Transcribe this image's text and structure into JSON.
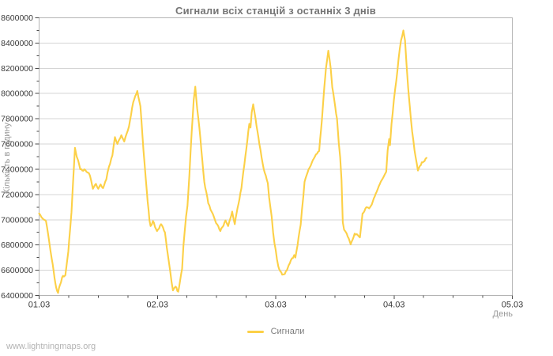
{
  "watermark": "www.lightningmaps.org",
  "colors": {
    "series": "#fcd047",
    "title_text": "#757575",
    "axis_tick_text": "#3a3a3a",
    "muted_text": "#9a9a9a",
    "grid": "#d4d4d4",
    "frame": "#b4b4b4",
    "tick": "#4a4a4a",
    "background": "#ffffff"
  },
  "chart_data": {
    "type": "line",
    "title": "Сигнали всіх станцій з останніх 3 днів",
    "xlabel": "День",
    "ylabel": "Кількість в годину",
    "legend_position": "bottom",
    "grid": "horizontal-major-only",
    "ylim": [
      6400000,
      8600000
    ],
    "y_tick_step": 200000,
    "y_minor_step": 100000,
    "x_range_days": [
      0,
      4
    ],
    "x_minor_step_days": 0.25,
    "x_tick_labels": [
      "01.03",
      "02.03",
      "03.03",
      "04.03",
      "05.03"
    ],
    "series": [
      {
        "name": "Сигнали",
        "color": "#fcd047",
        "points_format": "[days_since_01.03, signals_per_hour]",
        "points": [
          [
            0.0,
            7050000
          ],
          [
            0.02,
            7020000
          ],
          [
            0.058,
            6990000
          ],
          [
            0.085,
            6830000
          ],
          [
            0.107,
            6690000
          ],
          [
            0.13,
            6540000
          ],
          [
            0.145,
            6460000
          ],
          [
            0.16,
            6420000
          ],
          [
            0.175,
            6480000
          ],
          [
            0.195,
            6545000
          ],
          [
            0.21,
            6550000
          ],
          [
            0.222,
            6560000
          ],
          [
            0.235,
            6660000
          ],
          [
            0.247,
            6750000
          ],
          [
            0.262,
            6920000
          ],
          [
            0.274,
            7060000
          ],
          [
            0.287,
            7300000
          ],
          [
            0.303,
            7570000
          ],
          [
            0.318,
            7500000
          ],
          [
            0.33,
            7470000
          ],
          [
            0.348,
            7400000
          ],
          [
            0.365,
            7390000
          ],
          [
            0.382,
            7400000
          ],
          [
            0.4,
            7380000
          ],
          [
            0.42,
            7370000
          ],
          [
            0.44,
            7310000
          ],
          [
            0.455,
            7245000
          ],
          [
            0.48,
            7285000
          ],
          [
            0.5,
            7245000
          ],
          [
            0.52,
            7280000
          ],
          [
            0.54,
            7250000
          ],
          [
            0.568,
            7320000
          ],
          [
            0.59,
            7420000
          ],
          [
            0.62,
            7510000
          ],
          [
            0.641,
            7655000
          ],
          [
            0.662,
            7600000
          ],
          [
            0.695,
            7670000
          ],
          [
            0.72,
            7620000
          ],
          [
            0.76,
            7740000
          ],
          [
            0.795,
            7930000
          ],
          [
            0.83,
            8020000
          ],
          [
            0.856,
            7900000
          ],
          [
            0.882,
            7550000
          ],
          [
            0.91,
            7230000
          ],
          [
            0.933,
            6995000
          ],
          [
            0.942,
            6950000
          ],
          [
            0.962,
            6990000
          ],
          [
            0.997,
            6910000
          ],
          [
            1.031,
            6965000
          ],
          [
            1.064,
            6900000
          ],
          [
            1.087,
            6730000
          ],
          [
            1.109,
            6585000
          ],
          [
            1.131,
            6440000
          ],
          [
            1.153,
            6470000
          ],
          [
            1.176,
            6430000
          ],
          [
            1.209,
            6610000
          ],
          [
            1.22,
            6795000
          ],
          [
            1.242,
            7025000
          ],
          [
            1.254,
            7110000
          ],
          [
            1.27,
            7350000
          ],
          [
            1.29,
            7700000
          ],
          [
            1.307,
            7950000
          ],
          [
            1.32,
            8055000
          ],
          [
            1.336,
            7880000
          ],
          [
            1.363,
            7650000
          ],
          [
            1.396,
            7300000
          ],
          [
            1.43,
            7130000
          ],
          [
            1.488,
            6995000
          ],
          [
            1.532,
            6910000
          ],
          [
            1.576,
            6995000
          ],
          [
            1.598,
            6950000
          ],
          [
            1.632,
            7065000
          ],
          [
            1.654,
            6965000
          ],
          [
            1.677,
            7090000
          ],
          [
            1.71,
            7250000
          ],
          [
            1.743,
            7500000
          ],
          [
            1.777,
            7760000
          ],
          [
            1.787,
            7730000
          ],
          [
            1.797,
            7850000
          ],
          [
            1.81,
            7915000
          ],
          [
            1.83,
            7800000
          ],
          [
            1.862,
            7600000
          ],
          [
            1.899,
            7400000
          ],
          [
            1.933,
            7290000
          ],
          [
            1.944,
            7180000
          ],
          [
            1.966,
            7025000
          ],
          [
            1.978,
            6900000
          ],
          [
            1.989,
            6815000
          ],
          [
            2.0,
            6760000
          ],
          [
            2.022,
            6630000
          ],
          [
            2.04,
            6590000
          ],
          [
            2.055,
            6565000
          ],
          [
            2.077,
            6570000
          ],
          [
            2.11,
            6640000
          ],
          [
            2.156,
            6720000
          ],
          [
            2.166,
            6700000
          ],
          [
            2.211,
            6960000
          ],
          [
            2.233,
            7180000
          ],
          [
            2.244,
            7300000
          ],
          [
            2.278,
            7400000
          ],
          [
            2.331,
            7500000
          ],
          [
            2.367,
            7545000
          ],
          [
            2.391,
            7800000
          ],
          [
            2.411,
            8050000
          ],
          [
            2.425,
            8200000
          ],
          [
            2.445,
            8340000
          ],
          [
            2.465,
            8200000
          ],
          [
            2.478,
            8050000
          ],
          [
            2.495,
            7950000
          ],
          [
            2.518,
            7800000
          ],
          [
            2.533,
            7610000
          ],
          [
            2.545,
            7495000
          ],
          [
            2.556,
            7315000
          ],
          [
            2.567,
            6980000
          ],
          [
            2.578,
            6920000
          ],
          [
            2.6,
            6890000
          ],
          [
            2.634,
            6805000
          ],
          [
            2.667,
            6890000
          ],
          [
            2.712,
            6860000
          ],
          [
            2.734,
            7050000
          ],
          [
            2.767,
            7100000
          ],
          [
            2.79,
            7090000
          ],
          [
            2.812,
            7120000
          ],
          [
            2.845,
            7205000
          ],
          [
            2.879,
            7280000
          ],
          [
            2.912,
            7340000
          ],
          [
            2.934,
            7380000
          ],
          [
            2.946,
            7550000
          ],
          [
            2.959,
            7640000
          ],
          [
            2.966,
            7590000
          ],
          [
            2.979,
            7760000
          ],
          [
            2.999,
            7950000
          ],
          [
            3.019,
            8100000
          ],
          [
            3.039,
            8280000
          ],
          [
            3.059,
            8420000
          ],
          [
            3.079,
            8500000
          ],
          [
            3.093,
            8420000
          ],
          [
            3.106,
            8230000
          ],
          [
            3.119,
            8050000
          ],
          [
            3.133,
            7900000
          ],
          [
            3.153,
            7700000
          ],
          [
            3.173,
            7550000
          ],
          [
            3.202,
            7390000
          ],
          [
            3.235,
            7455000
          ],
          [
            3.258,
            7465000
          ],
          [
            3.275,
            7490000
          ]
        ]
      }
    ]
  }
}
